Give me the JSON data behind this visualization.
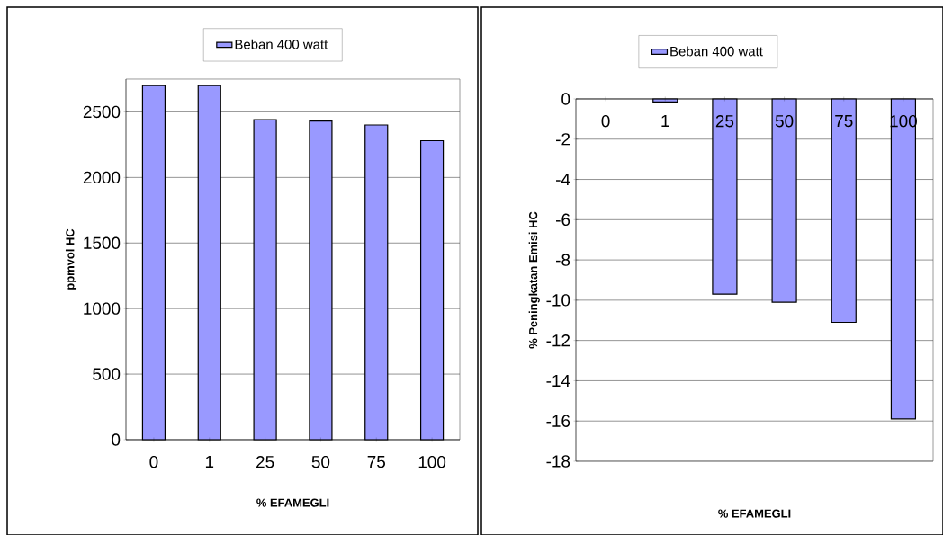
{
  "chart_data": [
    {
      "type": "bar",
      "xlabel": "% EFAMEGLI",
      "ylabel": "ppmvol HC",
      "categories": [
        "0",
        "1",
        "25",
        "50",
        "75",
        "100"
      ],
      "series": [
        {
          "name": "Beban 400 watt",
          "color": "#9999ff",
          "values": [
            2700,
            2700,
            2440,
            2430,
            2400,
            2280
          ]
        }
      ],
      "ylim": [
        0,
        2750
      ],
      "yticks": [
        0,
        500,
        1000,
        1500,
        2000,
        2500
      ],
      "grid": "y",
      "legend": "top"
    },
    {
      "type": "bar",
      "xlabel": "% EFAMEGLI",
      "ylabel": "% Peningkatan Emisi HC",
      "categories": [
        "0",
        "1",
        "25",
        "50",
        "75",
        "100"
      ],
      "series": [
        {
          "name": "Beban 400 watt",
          "color": "#9999ff",
          "values": [
            null,
            -0.15,
            -9.7,
            -10.1,
            -11.1,
            -15.9
          ]
        }
      ],
      "ylim": [
        -18,
        0
      ],
      "yticks": [
        0,
        -2,
        -4,
        -6,
        -8,
        -10,
        -12,
        -14,
        -16,
        -18
      ],
      "grid": "y",
      "legend": "top"
    }
  ]
}
